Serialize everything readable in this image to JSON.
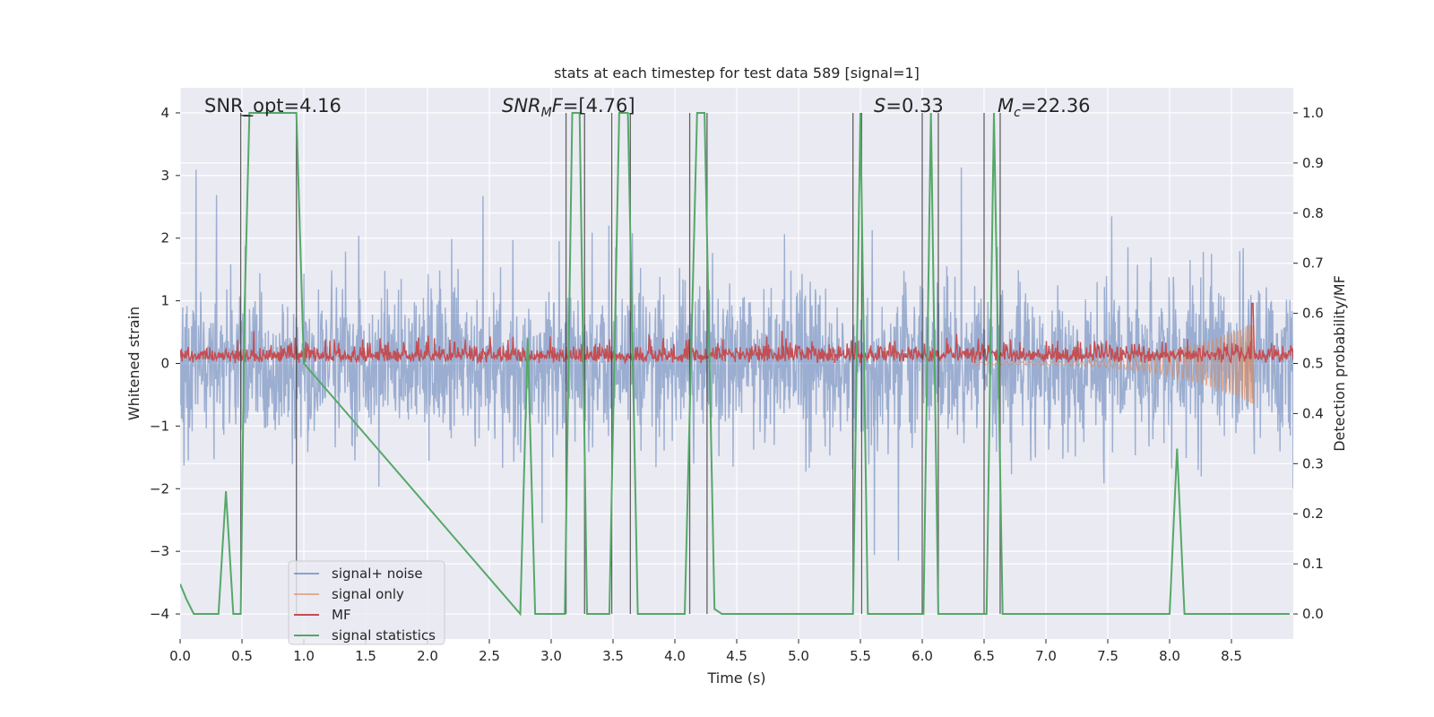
{
  "chart_data": {
    "type": "line",
    "title": "stats at each timestep for test data 589 [signal=1]",
    "xlabel": "Time (s)",
    "ylabel": "Whitened strain",
    "y2label": "Detection probability/MF",
    "xlim": [
      0.0,
      9.0
    ],
    "ylim": [
      -4.4,
      4.4
    ],
    "y2lim": [
      -0.05,
      1.05
    ],
    "xticks": [
      "0.0",
      "0.5",
      "1.0",
      "1.5",
      "2.0",
      "2.5",
      "3.0",
      "3.5",
      "4.0",
      "4.5",
      "5.0",
      "5.5",
      "6.0",
      "6.5",
      "7.0",
      "7.5",
      "8.0",
      "8.5"
    ],
    "yticks": [
      "4",
      "3",
      "2",
      "1",
      "0",
      "−1",
      "−2",
      "−3",
      "−4"
    ],
    "y2ticks": [
      "1.0",
      "0.9",
      "0.8",
      "0.7",
      "0.6",
      "0.5",
      "0.4",
      "0.3",
      "0.2",
      "0.1",
      "0.0"
    ],
    "grid": true,
    "legend_position": "lower-left",
    "colors": {
      "background": "#eaeaf2",
      "grid": "#ffffff",
      "signal_noise": "#4c72b0",
      "signal_only": "#dd8452",
      "mf": "#c44e52",
      "signal_statistics": "#55a868",
      "segment_lines": "#333333"
    },
    "annotations": [
      {
        "parts": [
          {
            "text": "SNR_opt=4.16"
          }
        ]
      },
      {
        "parts": [
          {
            "text": "SNR",
            "italic": true
          },
          {
            "text": "M",
            "italic": true,
            "sub": true
          },
          {
            "text": "F",
            "italic": true
          },
          {
            "text": "=[4.76]"
          }
        ]
      },
      {
        "parts": [
          {
            "text": "S",
            "italic": true
          },
          {
            "text": "=0.33"
          }
        ]
      },
      {
        "parts": [
          {
            "text": "M",
            "italic": true
          },
          {
            "text": "c",
            "italic": true,
            "sub": true
          },
          {
            "text": "=22.36"
          }
        ]
      }
    ],
    "series": [
      {
        "name": "signal+ noise",
        "kind": "noise",
        "y_range": [
          -4.0,
          4.0
        ],
        "x_range": [
          0.0,
          9.0
        ]
      },
      {
        "name": "signal only",
        "kind": "chirp",
        "x_range": [
          6.4,
          8.68
        ],
        "amplitude_y2_max": 0.58,
        "amplitude_y2_min": 0.37
      },
      {
        "name": "MF",
        "kind": "mf",
        "axis": "y2",
        "baseline_y2": 0.5,
        "typical_max_y2": 0.55,
        "peak": {
          "x": 8.67,
          "y2": 0.62
        }
      },
      {
        "name": "signal statistics",
        "axis": "y2",
        "points": [
          [
            0.0,
            0.06
          ],
          [
            0.05,
            0.03
          ],
          [
            0.11,
            0.0
          ],
          [
            0.31,
            0.0
          ],
          [
            0.37,
            0.245
          ],
          [
            0.43,
            0.0
          ],
          [
            0.49,
            0.0
          ],
          [
            0.52,
            0.6
          ],
          [
            0.56,
            1.0
          ],
          [
            0.94,
            1.0
          ],
          [
            1.0,
            0.5
          ],
          [
            2.75,
            0.0
          ],
          [
            2.81,
            0.55
          ],
          [
            2.87,
            0.0
          ],
          [
            3.11,
            0.0
          ],
          [
            3.17,
            1.0
          ],
          [
            3.23,
            1.0
          ],
          [
            3.29,
            0.0
          ],
          [
            3.47,
            0.0
          ],
          [
            3.55,
            1.0
          ],
          [
            3.62,
            1.0
          ],
          [
            3.7,
            0.0
          ],
          [
            4.08,
            0.0
          ],
          [
            4.18,
            1.0
          ],
          [
            4.24,
            1.0
          ],
          [
            4.32,
            0.01
          ],
          [
            4.38,
            0.0
          ],
          [
            5.44,
            0.0
          ],
          [
            5.5,
            1.0
          ],
          [
            5.56,
            0.0
          ],
          [
            6.01,
            0.0
          ],
          [
            6.07,
            1.0
          ],
          [
            6.13,
            0.0
          ],
          [
            6.52,
            0.0
          ],
          [
            6.58,
            1.0
          ],
          [
            6.65,
            0.0
          ],
          [
            8.0,
            0.0
          ],
          [
            8.06,
            0.33
          ],
          [
            8.12,
            0.0
          ],
          [
            8.97,
            0.0
          ]
        ]
      }
    ],
    "segment_bounds_s": [
      0.49,
      0.94,
      3.12,
      3.27,
      3.49,
      3.64,
      4.12,
      4.26,
      5.44,
      5.51,
      6.0,
      6.13,
      6.5,
      6.63
    ],
    "legend": [
      {
        "label": "signal+ noise"
      },
      {
        "label": "signal only"
      },
      {
        "label": "MF"
      },
      {
        "label": "signal statistics"
      }
    ]
  }
}
